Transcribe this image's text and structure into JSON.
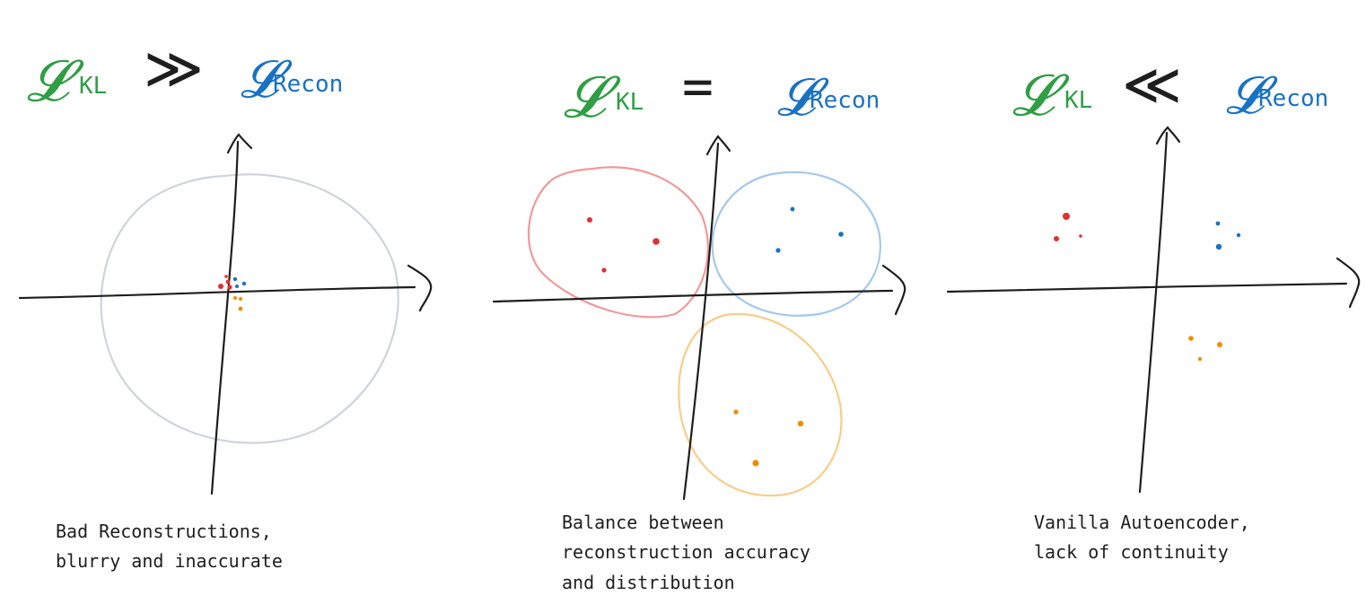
{
  "colors": {
    "kl": "#2f9e44",
    "recon": "#1971c2",
    "ink": "#1e1e1e",
    "red": "#e03131",
    "blue": "#1971c2",
    "orange": "#f08c00",
    "grey_circle": "#ced4da",
    "red_circle": "#ef9a9a",
    "blue_circle": "#a5c8ec",
    "orange_circle": "#f8cd8a"
  },
  "panels": [
    {
      "kl_symbol": "𝓛",
      "kl_label": "KL",
      "relation": "≫",
      "recon_symbol": "𝓛",
      "recon_label": "Recon",
      "caption": [
        "Bad Reconstructions,",
        "blurry and inaccurate"
      ]
    },
    {
      "kl_symbol": "𝓛",
      "kl_label": "KL",
      "relation": "=",
      "recon_symbol": "𝓛",
      "recon_label": "Recon",
      "caption": [
        "Balance between",
        "reconstruction accuracy",
        "and distribution"
      ]
    },
    {
      "kl_symbol": "𝓛",
      "kl_label": "KL",
      "relation": "≪",
      "recon_symbol": "𝓛",
      "recon_label": "Recon",
      "caption": [
        "Vanilla Autoencoder,",
        "lack of continuity"
      ]
    }
  ]
}
